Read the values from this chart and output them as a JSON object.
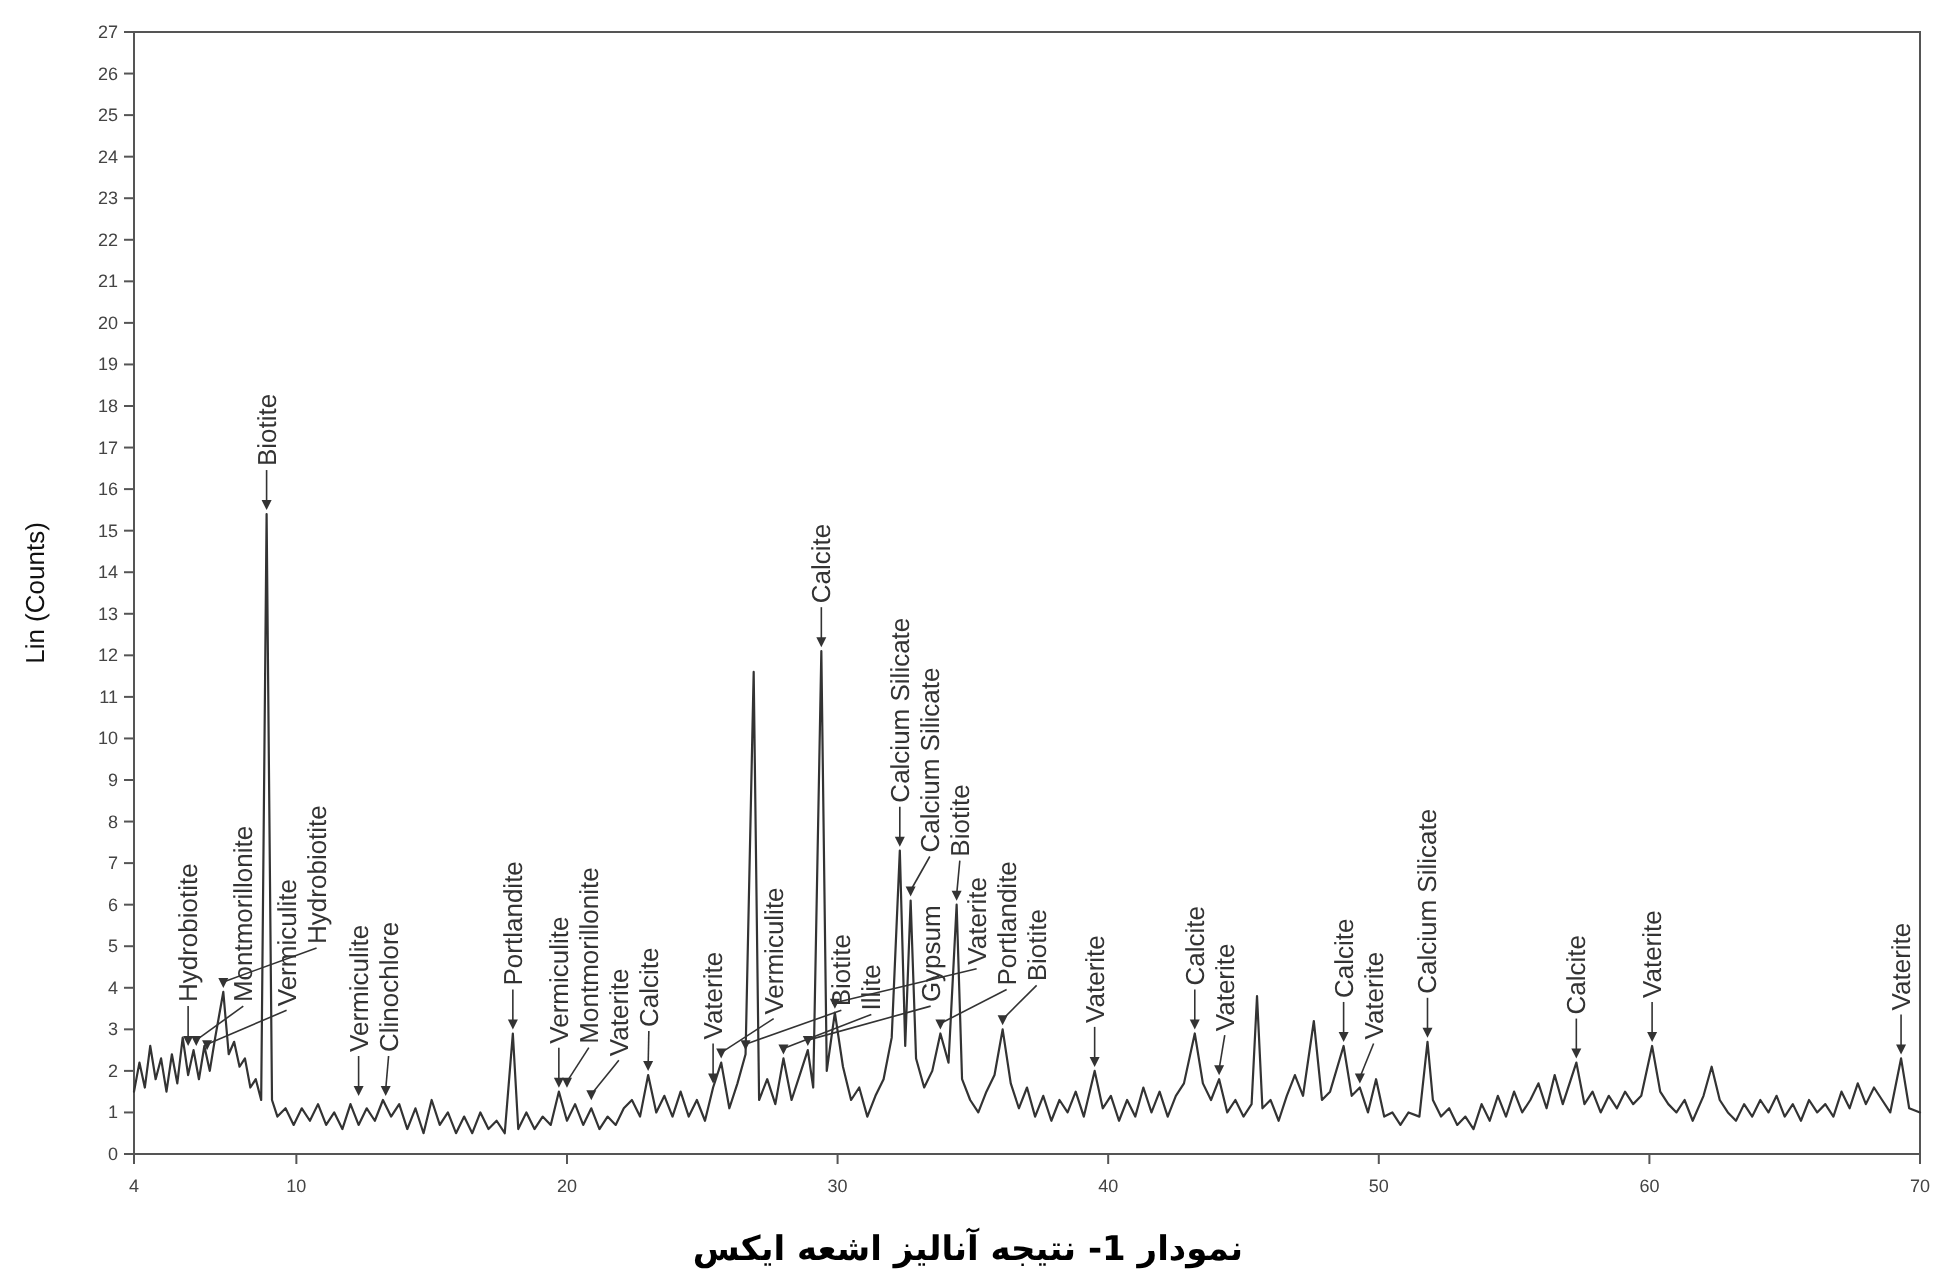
{
  "chart_data": {
    "type": "line",
    "title": "نمودار 1- نتیجه آنالیز  اشعه ایکس",
    "ylabel": "Lin (Counts)",
    "xlim": [
      4,
      70
    ],
    "ylim": [
      0,
      27
    ],
    "xticks": [
      4,
      10,
      20,
      30,
      40,
      50,
      60,
      70
    ],
    "yticks": [
      0,
      1,
      2,
      3,
      4,
      5,
      6,
      7,
      8,
      9,
      10,
      11,
      12,
      13,
      14,
      15,
      16,
      17,
      18,
      19,
      20,
      21,
      22,
      23,
      24,
      25,
      26,
      27
    ],
    "x": [
      4.0,
      4.2,
      4.4,
      4.6,
      4.8,
      5.0,
      5.2,
      5.4,
      5.6,
      5.8,
      6.0,
      6.2,
      6.4,
      6.6,
      6.8,
      7.0,
      7.3,
      7.5,
      7.7,
      7.9,
      8.1,
      8.3,
      8.5,
      8.7,
      8.9,
      9.1,
      9.3,
      9.6,
      9.9,
      10.2,
      10.5,
      10.8,
      11.1,
      11.4,
      11.7,
      12.0,
      12.3,
      12.6,
      12.9,
      13.2,
      13.5,
      13.8,
      14.1,
      14.4,
      14.7,
      15.0,
      15.3,
      15.6,
      15.9,
      16.2,
      16.5,
      16.8,
      17.1,
      17.4,
      17.7,
      18.0,
      18.2,
      18.5,
      18.8,
      19.1,
      19.4,
      19.7,
      20.0,
      20.3,
      20.6,
      20.9,
      21.2,
      21.5,
      21.8,
      22.1,
      22.4,
      22.7,
      23.0,
      23.3,
      23.6,
      23.9,
      24.2,
      24.5,
      24.8,
      25.1,
      25.4,
      25.7,
      26.0,
      26.3,
      26.6,
      26.9,
      27.1,
      27.4,
      27.7,
      28.0,
      28.3,
      28.6,
      28.9,
      29.1,
      29.4,
      29.6,
      29.9,
      30.2,
      30.5,
      30.8,
      31.1,
      31.4,
      31.7,
      32.0,
      32.3,
      32.5,
      32.7,
      32.9,
      33.2,
      33.5,
      33.8,
      34.1,
      34.4,
      34.6,
      34.9,
      35.2,
      35.5,
      35.8,
      36.1,
      36.4,
      36.7,
      37.0,
      37.3,
      37.6,
      37.9,
      38.2,
      38.5,
      38.8,
      39.1,
      39.5,
      39.8,
      40.1,
      40.4,
      40.7,
      41.0,
      41.3,
      41.6,
      41.9,
      42.2,
      42.5,
      42.8,
      43.2,
      43.5,
      43.8,
      44.1,
      44.4,
      44.7,
      45.0,
      45.3,
      45.5,
      45.7,
      46.0,
      46.3,
      46.6,
      46.9,
      47.2,
      47.6,
      47.9,
      48.2,
      48.7,
      49.0,
      49.3,
      49.6,
      49.9,
      50.2,
      50.5,
      50.8,
      51.1,
      51.5,
      51.8,
      52.0,
      52.3,
      52.6,
      52.9,
      53.2,
      53.5,
      53.8,
      54.1,
      54.4,
      54.7,
      55.0,
      55.3,
      55.6,
      55.9,
      56.2,
      56.5,
      56.8,
      57.3,
      57.6,
      57.9,
      58.2,
      58.5,
      58.8,
      59.1,
      59.4,
      59.7,
      60.1,
      60.4,
      60.7,
      61.0,
      61.3,
      61.6,
      62.0,
      62.3,
      62.6,
      62.9,
      63.2,
      63.5,
      63.8,
      64.1,
      64.4,
      64.7,
      65.0,
      65.3,
      65.6,
      65.9,
      66.2,
      66.5,
      66.8,
      67.1,
      67.4,
      67.7,
      68.0,
      68.3,
      68.6,
      68.9,
      69.3,
      69.6,
      70.0
    ],
    "series": [
      {
        "color": "#333333",
        "values": [
          1.5,
          2.2,
          1.6,
          2.6,
          1.8,
          2.3,
          1.5,
          2.4,
          1.7,
          2.8,
          1.9,
          2.5,
          1.8,
          2.6,
          2.0,
          2.8,
          3.9,
          2.4,
          2.7,
          2.1,
          2.3,
          1.6,
          1.8,
          1.3,
          15.4,
          1.3,
          0.9,
          1.1,
          0.7,
          1.1,
          0.8,
          1.2,
          0.7,
          1.0,
          0.6,
          1.2,
          0.7,
          1.1,
          0.8,
          1.3,
          0.9,
          1.2,
          0.6,
          1.1,
          0.5,
          1.3,
          0.7,
          1.0,
          0.5,
          0.9,
          0.5,
          1.0,
          0.6,
          0.8,
          0.5,
          2.9,
          0.6,
          1.0,
          0.6,
          0.9,
          0.7,
          1.5,
          0.8,
          1.2,
          0.7,
          1.1,
          0.6,
          0.9,
          0.7,
          1.1,
          1.3,
          0.9,
          1.9,
          1.0,
          1.4,
          0.9,
          1.5,
          0.9,
          1.3,
          0.8,
          1.6,
          2.2,
          1.1,
          1.7,
          2.4,
          11.6,
          1.3,
          1.8,
          1.2,
          2.3,
          1.3,
          1.9,
          2.5,
          1.6,
          12.1,
          2.0,
          3.4,
          2.1,
          1.3,
          1.6,
          0.9,
          1.4,
          1.8,
          2.8,
          7.3,
          2.6,
          6.1,
          2.3,
          1.6,
          2.0,
          2.9,
          2.2,
          6.0,
          1.8,
          1.3,
          1.0,
          1.5,
          1.9,
          3.0,
          1.7,
          1.1,
          1.6,
          0.9,
          1.4,
          0.8,
          1.3,
          1.0,
          1.5,
          0.9,
          2.0,
          1.1,
          1.4,
          0.8,
          1.3,
          0.9,
          1.6,
          1.0,
          1.5,
          0.9,
          1.4,
          1.7,
          2.9,
          1.7,
          1.3,
          1.8,
          1.0,
          1.3,
          0.9,
          1.2,
          3.8,
          1.1,
          1.3,
          0.8,
          1.4,
          1.9,
          1.4,
          3.2,
          1.3,
          1.5,
          2.6,
          1.4,
          1.6,
          1.0,
          1.8,
          0.9,
          1.0,
          0.7,
          1.0,
          0.9,
          2.7,
          1.3,
          0.9,
          1.1,
          0.7,
          0.9,
          0.6,
          1.2,
          0.8,
          1.4,
          0.9,
          1.5,
          1.0,
          1.3,
          1.7,
          1.1,
          1.9,
          1.2,
          2.2,
          1.2,
          1.5,
          1.0,
          1.4,
          1.1,
          1.5,
          1.2,
          1.4,
          2.6,
          1.5,
          1.2,
          1.0,
          1.3,
          0.8,
          1.4,
          2.1,
          1.3,
          1.0,
          0.8,
          1.2,
          0.9,
          1.3,
          1.0,
          1.4,
          0.9,
          1.2,
          0.8,
          1.3,
          1.0,
          1.2,
          0.9,
          1.5,
          1.1,
          1.7,
          1.2,
          1.6,
          1.3,
          1.0,
          2.3,
          1.1,
          1.0
        ]
      }
    ],
    "annotations": [
      {
        "text": "Hydrobiotite",
        "x": 6.0,
        "y": 2.5
      },
      {
        "text": "Montmorillonite",
        "x": 6.3,
        "y": 2.5
      },
      {
        "text": "Vermiculite",
        "x": 6.7,
        "y": 2.4
      },
      {
        "text": "Hydrobiotite",
        "x": 7.3,
        "y": 3.9
      },
      {
        "text": "Biotite",
        "x": 8.9,
        "y": 15.4
      },
      {
        "text": "Vermiculite",
        "x": 12.3,
        "y": 1.3
      },
      {
        "text": "Clinochlore",
        "x": 13.3,
        "y": 1.3
      },
      {
        "text": "Portlandite",
        "x": 18.0,
        "y": 2.9
      },
      {
        "text": "Vermiculite",
        "x": 19.7,
        "y": 1.5
      },
      {
        "text": "Montmorillonite",
        "x": 20.0,
        "y": 1.5
      },
      {
        "text": "Vaterite",
        "x": 20.9,
        "y": 1.2
      },
      {
        "text": "Calcite",
        "x": 23.0,
        "y": 1.9
      },
      {
        "text": "Vaterite",
        "x": 25.4,
        "y": 1.6
      },
      {
        "text": "Vermiculite",
        "x": 25.7,
        "y": 2.2
      },
      {
        "text": "Biotite",
        "x": 26.6,
        "y": 2.4
      },
      {
        "text": "Illite",
        "x": 28.0,
        "y": 2.3
      },
      {
        "text": "Gypsum",
        "x": 28.9,
        "y": 2.5
      },
      {
        "text": "Calcite",
        "x": 29.4,
        "y": 12.1
      },
      {
        "text": "Vaterite",
        "x": 29.9,
        "y": 3.4
      },
      {
        "text": "Calcium Silicate",
        "x": 32.3,
        "y": 7.3
      },
      {
        "text": "Calcium Silicate",
        "x": 32.7,
        "y": 6.1
      },
      {
        "text": "Portlandite",
        "x": 33.8,
        "y": 2.9
      },
      {
        "text": "Biotite",
        "x": 34.4,
        "y": 6.0
      },
      {
        "text": "Biotite",
        "x": 36.1,
        "y": 3.0
      },
      {
        "text": "Vaterite",
        "x": 39.5,
        "y": 2.0
      },
      {
        "text": "Calcite",
        "x": 43.2,
        "y": 2.9
      },
      {
        "text": "Vaterite",
        "x": 44.1,
        "y": 1.8
      },
      {
        "text": "Calcite",
        "x": 48.7,
        "y": 2.6
      },
      {
        "text": "Vaterite",
        "x": 49.3,
        "y": 1.6
      },
      {
        "text": "Calcium Silicate",
        "x": 51.8,
        "y": 2.7
      },
      {
        "text": "Calcite",
        "x": 57.3,
        "y": 2.2
      },
      {
        "text": "Vaterite",
        "x": 60.1,
        "y": 2.6
      },
      {
        "text": "Vaterite",
        "x": 69.3,
        "y": 2.3
      }
    ]
  }
}
